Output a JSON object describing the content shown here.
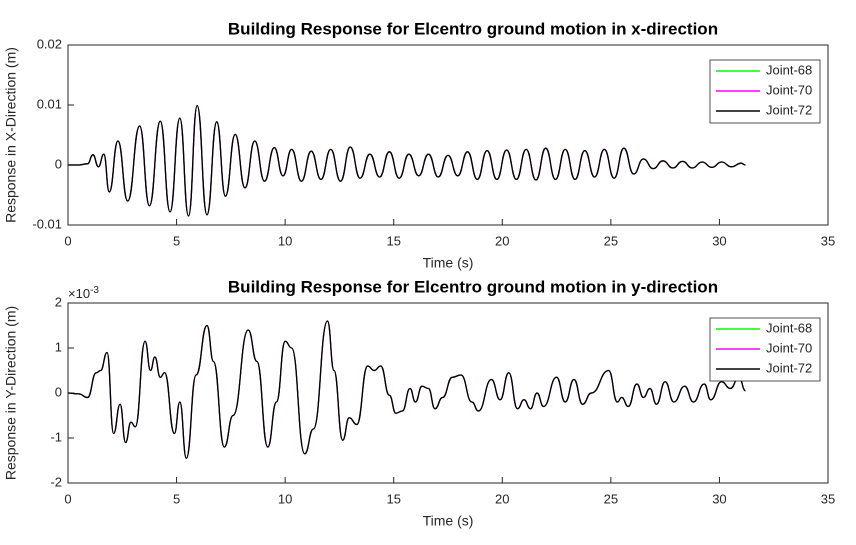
{
  "chart_data": [
    {
      "type": "line",
      "title": "Building Response for Elcentro ground motion in x-direction",
      "xlabel": "Time (s)",
      "ylabel": "Response in X-Direction (m)",
      "x": [
        0,
        0.5,
        0.9,
        1.15,
        1.4,
        1.65,
        1.9,
        2.3,
        2.75,
        3.3,
        3.75,
        4.25,
        4.7,
        5.15,
        5.55,
        5.95,
        6.4,
        6.85,
        7.25,
        7.7,
        8.15,
        8.6,
        9.05,
        9.5,
        9.9,
        10.3,
        10.75,
        11.2,
        11.65,
        12.1,
        12.55,
        13,
        13.45,
        13.9,
        14.35,
        14.8,
        15.25,
        15.7,
        16.15,
        16.6,
        17.05,
        17.5,
        17.95,
        18.4,
        18.85,
        19.3,
        19.75,
        20.2,
        20.65,
        21.1,
        21.55,
        22,
        22.45,
        22.9,
        23.35,
        23.8,
        24.25,
        24.7,
        25.15,
        25.6,
        26.05,
        26.5,
        26.95,
        27.4,
        27.85,
        28.3,
        28.75,
        29.2,
        29.65,
        30.1,
        30.55,
        31,
        31.2
      ],
      "series": [
        {
          "name": "Joint-68",
          "color": "#00ff00",
          "values": [
            0,
            0,
            0.0002,
            0.0017,
            -0.0003,
            0.0018,
            -0.0045,
            0.004,
            -0.006,
            0.0065,
            -0.0068,
            0.0073,
            -0.0078,
            0.0078,
            -0.0085,
            0.0099,
            -0.0083,
            0.0072,
            -0.0052,
            0.0051,
            -0.0038,
            0.004,
            -0.0027,
            0.0029,
            -0.0018,
            0.0026,
            -0.0027,
            0.0023,
            -0.0024,
            0.0026,
            -0.0027,
            0.003,
            -0.0022,
            0.0018,
            -0.002,
            0.0022,
            -0.0022,
            0.0018,
            -0.0018,
            0.0018,
            -0.002,
            0.0016,
            -0.0018,
            0.0022,
            -0.0024,
            0.0024,
            -0.0024,
            0.0025,
            -0.0024,
            0.0026,
            -0.0025,
            0.0028,
            -0.0024,
            0.0026,
            -0.0024,
            0.0024,
            -0.002,
            0.0026,
            -0.0022,
            0.0028,
            -0.0015,
            0.001,
            -0.0006,
            0.0007,
            -0.0005,
            0.0006,
            -0.0005,
            0.0005,
            -0.0004,
            0.0005,
            -0.0003,
            0.0003,
            0
          ]
        },
        {
          "name": "Joint-70",
          "color": "#ff00ff",
          "values": [
            0,
            0,
            0.0002,
            0.0017,
            -0.0003,
            0.0018,
            -0.0045,
            0.004,
            -0.006,
            0.0065,
            -0.0068,
            0.0073,
            -0.0078,
            0.0078,
            -0.0085,
            0.0099,
            -0.0083,
            0.0072,
            -0.0052,
            0.0051,
            -0.0038,
            0.004,
            -0.0027,
            0.0029,
            -0.0018,
            0.0026,
            -0.0027,
            0.0023,
            -0.0024,
            0.0026,
            -0.0027,
            0.003,
            -0.0022,
            0.0018,
            -0.002,
            0.0022,
            -0.0022,
            0.0018,
            -0.0018,
            0.0018,
            -0.002,
            0.0016,
            -0.0018,
            0.0022,
            -0.0024,
            0.0024,
            -0.0024,
            0.0025,
            -0.0024,
            0.0026,
            -0.0025,
            0.0028,
            -0.0024,
            0.0026,
            -0.0024,
            0.0024,
            -0.002,
            0.0026,
            -0.0022,
            0.0028,
            -0.0015,
            0.001,
            -0.0006,
            0.0007,
            -0.0005,
            0.0006,
            -0.0005,
            0.0005,
            -0.0004,
            0.0005,
            -0.0003,
            0.0003,
            0
          ]
        },
        {
          "name": "Joint-72",
          "color": "#000000",
          "values": [
            0,
            0,
            0.0002,
            0.0017,
            -0.0003,
            0.0018,
            -0.0045,
            0.004,
            -0.006,
            0.0065,
            -0.0068,
            0.0073,
            -0.0078,
            0.0078,
            -0.0085,
            0.0099,
            -0.0083,
            0.0072,
            -0.0052,
            0.0051,
            -0.0038,
            0.004,
            -0.0027,
            0.0029,
            -0.0018,
            0.0026,
            -0.0027,
            0.0023,
            -0.0024,
            0.0026,
            -0.0027,
            0.003,
            -0.0022,
            0.0018,
            -0.002,
            0.0022,
            -0.0022,
            0.0018,
            -0.0018,
            0.0018,
            -0.002,
            0.0016,
            -0.0018,
            0.0022,
            -0.0024,
            0.0024,
            -0.0024,
            0.0025,
            -0.0024,
            0.0026,
            -0.0025,
            0.0028,
            -0.0024,
            0.0026,
            -0.0024,
            0.0024,
            -0.002,
            0.0026,
            -0.0022,
            0.0028,
            -0.0015,
            0.001,
            -0.0006,
            0.0007,
            -0.0005,
            0.0006,
            -0.0005,
            0.0005,
            -0.0004,
            0.0005,
            -0.0003,
            0.0003,
            0
          ]
        }
      ],
      "xlim": [
        0,
        35
      ],
      "xticks": [
        0,
        5,
        10,
        15,
        20,
        25,
        30,
        35
      ],
      "ylim": [
        -0.01,
        0.02
      ],
      "yticks": [
        -0.01,
        0,
        0.01,
        0.02
      ],
      "grid": false,
      "legend": "upper right"
    },
    {
      "type": "line",
      "title": "Building Response for Elcentro ground motion in y-direction",
      "xlabel": "Time (s)",
      "ylabel": "Response in Y-Direction (m)",
      "offset_text": {
        "base": "×10",
        "exponent": "-3"
      },
      "x": [
        0,
        0.5,
        0.9,
        1.3,
        1.5,
        1.8,
        2.1,
        2.4,
        2.65,
        2.9,
        3.1,
        3.55,
        3.8,
        4.0,
        4.25,
        4.45,
        4.9,
        5.15,
        5.45,
        5.9,
        6.4,
        6.7,
        7.2,
        7.6,
        8.3,
        8.7,
        9.2,
        9.6,
        10,
        10.3,
        10.9,
        11.3,
        11.95,
        12.25,
        12.65,
        12.95,
        13.3,
        13.8,
        14.1,
        14.4,
        14.8,
        15.1,
        15.4,
        15.75,
        16.0,
        16.3,
        16.6,
        16.9,
        17.25,
        17.7,
        18.1,
        18.6,
        18.9,
        19.5,
        19.9,
        20.3,
        20.7,
        21.0,
        21.3,
        21.6,
        21.9,
        22.5,
        22.9,
        23.3,
        23.7,
        24.1,
        24.9,
        25.3,
        25.5,
        25.8,
        26.2,
        26.5,
        26.8,
        27.1,
        27.5,
        27.9,
        28.4,
        28.8,
        29.3,
        29.6,
        30.1,
        30.5,
        30.9,
        31.2
      ],
      "series": [
        {
          "name": "Joint-68",
          "color": "#00ff00",
          "values": [
            0,
            -0.02,
            -0.1,
            0.45,
            0.5,
            0.9,
            -0.9,
            -0.25,
            -1.1,
            -0.65,
            -0.75,
            1.15,
            0.5,
            0.8,
            0.35,
            0.45,
            -0.9,
            -0.2,
            -1.45,
            0.4,
            1.5,
            0.7,
            -1.2,
            -0.5,
            1.4,
            0.7,
            -1.2,
            -0.2,
            1.15,
            1.0,
            -1.35,
            -0.8,
            1.6,
            0.5,
            -1.05,
            -0.55,
            -0.7,
            0.6,
            0.5,
            0.6,
            -0.05,
            -0.45,
            -0.4,
            0.1,
            -0.2,
            0.15,
            0.1,
            -0.35,
            -0.1,
            0.35,
            0.4,
            -0.2,
            -0.4,
            0.3,
            -0.15,
            0.45,
            -0.35,
            -0.15,
            -0.35,
            0,
            -0.3,
            0.35,
            -0.2,
            0.3,
            -0.25,
            0,
            0.5,
            -0.2,
            -0.1,
            -0.3,
            0.2,
            -0.1,
            0.1,
            -0.25,
            0.25,
            -0.2,
            0.15,
            -0.2,
            0.2,
            -0.15,
            0.25,
            0.1,
            0.35,
            0.05
          ]
        },
        {
          "name": "Joint-70",
          "color": "#ff00ff",
          "values": [
            0,
            -0.02,
            -0.1,
            0.45,
            0.5,
            0.9,
            -0.9,
            -0.25,
            -1.1,
            -0.65,
            -0.75,
            1.15,
            0.5,
            0.8,
            0.35,
            0.45,
            -0.9,
            -0.2,
            -1.45,
            0.4,
            1.5,
            0.7,
            -1.2,
            -0.5,
            1.4,
            0.7,
            -1.2,
            -0.2,
            1.15,
            1.0,
            -1.35,
            -0.8,
            1.6,
            0.5,
            -1.05,
            -0.55,
            -0.7,
            0.6,
            0.5,
            0.6,
            -0.05,
            -0.45,
            -0.4,
            0.1,
            -0.2,
            0.15,
            0.1,
            -0.35,
            -0.1,
            0.35,
            0.4,
            -0.2,
            -0.4,
            0.3,
            -0.15,
            0.45,
            -0.35,
            -0.15,
            -0.35,
            0,
            -0.3,
            0.35,
            -0.2,
            0.3,
            -0.25,
            0,
            0.5,
            -0.2,
            -0.1,
            -0.3,
            0.2,
            -0.1,
            0.1,
            -0.25,
            0.25,
            -0.2,
            0.15,
            -0.2,
            0.2,
            -0.15,
            0.25,
            0.1,
            0.35,
            0.05
          ]
        },
        {
          "name": "Joint-72",
          "color": "#000000",
          "values": [
            0,
            -0.02,
            -0.1,
            0.45,
            0.5,
            0.9,
            -0.9,
            -0.25,
            -1.1,
            -0.65,
            -0.75,
            1.15,
            0.5,
            0.8,
            0.35,
            0.45,
            -0.9,
            -0.2,
            -1.45,
            0.4,
            1.5,
            0.7,
            -1.2,
            -0.5,
            1.4,
            0.7,
            -1.2,
            -0.2,
            1.15,
            1.0,
            -1.35,
            -0.8,
            1.6,
            0.5,
            -1.05,
            -0.55,
            -0.7,
            0.6,
            0.5,
            0.6,
            -0.05,
            -0.45,
            -0.4,
            0.1,
            -0.2,
            0.15,
            0.1,
            -0.35,
            -0.1,
            0.35,
            0.4,
            -0.2,
            -0.4,
            0.3,
            -0.15,
            0.45,
            -0.35,
            -0.15,
            -0.35,
            0,
            -0.3,
            0.35,
            -0.2,
            0.3,
            -0.25,
            0,
            0.5,
            -0.2,
            -0.1,
            -0.3,
            0.2,
            -0.1,
            0.1,
            -0.25,
            0.25,
            -0.2,
            0.15,
            -0.2,
            0.2,
            -0.15,
            0.25,
            0.1,
            0.35,
            0.05
          ]
        }
      ],
      "xlim": [
        0,
        35
      ],
      "xticks": [
        0,
        5,
        10,
        15,
        20,
        25,
        30,
        35
      ],
      "ylim": [
        -2,
        2
      ],
      "yticks": [
        -2,
        -1,
        0,
        1,
        2
      ],
      "grid": false,
      "legend": "upper right"
    }
  ]
}
